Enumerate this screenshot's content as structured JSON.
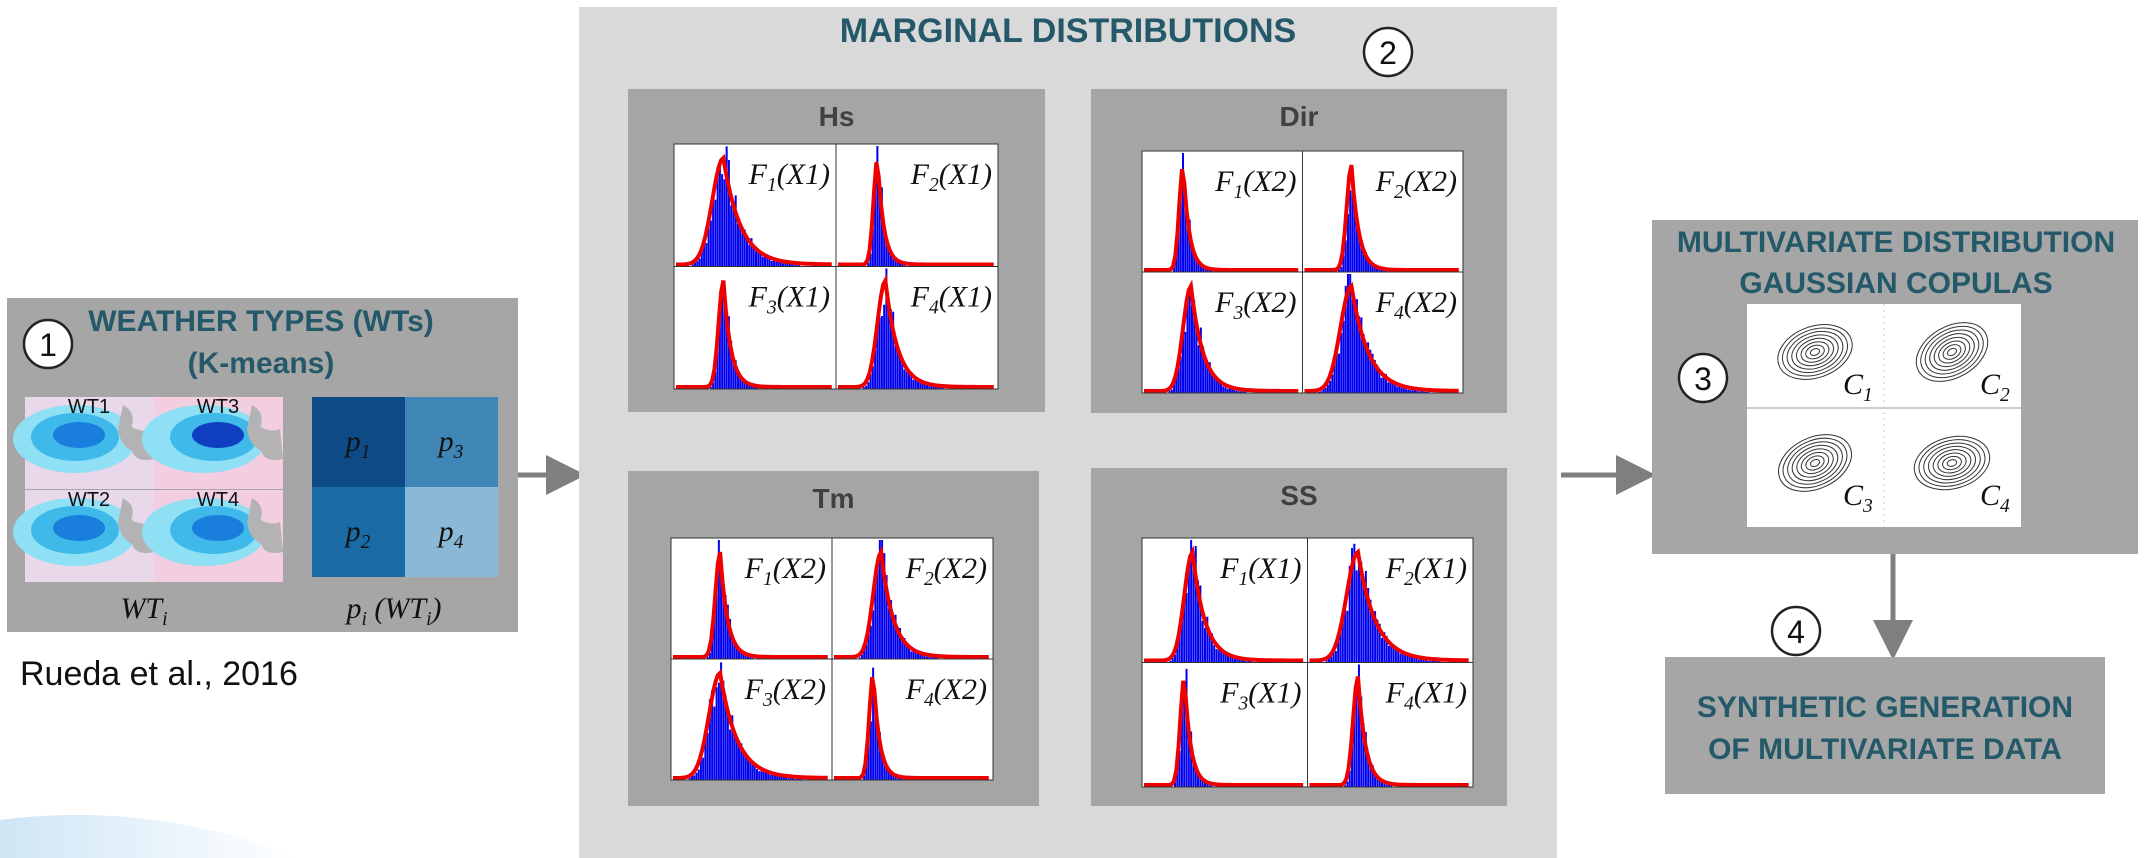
{
  "step1": {
    "number": "1",
    "title": [
      "WEATHER TYPES (WTs)",
      "(K-means)"
    ],
    "maps": [
      "WT1",
      "WT3",
      "WT2",
      "WT4"
    ],
    "probabilities": [
      [
        "p",
        {
          "sub": "1"
        }
      ],
      [
        "p",
        {
          "sub": "3"
        }
      ],
      [
        "p",
        {
          "sub": "2"
        }
      ],
      [
        "p",
        {
          "sub": "4"
        }
      ]
    ],
    "caption_maps": [
      "WT",
      {
        "sub": "i"
      }
    ],
    "caption_probs": [
      "p",
      {
        "sub": "i"
      },
      " (WT",
      {
        "sub": "i"
      },
      ")"
    ]
  },
  "reference": "Rueda et al., 2016",
  "step2": {
    "number": "2",
    "title": "MARGINAL DISTRIBUTIONS",
    "panels": [
      {
        "name": "Hs",
        "labels": [
          [
            "F",
            {
              "sub": "1"
            },
            "(X1)"
          ],
          [
            "F",
            {
              "sub": "2"
            },
            "(X1)"
          ],
          [
            "F",
            {
              "sub": "3"
            },
            "(X1)"
          ],
          [
            "F",
            {
              "sub": "4"
            },
            "(X1)"
          ]
        ]
      },
      {
        "name": "Dir",
        "labels": [
          [
            "F",
            {
              "sub": "1"
            },
            "(X2)"
          ],
          [
            "F",
            {
              "sub": "2"
            },
            "(X2)"
          ],
          [
            "F",
            {
              "sub": "3"
            },
            "(X2)"
          ],
          [
            "F",
            {
              "sub": "4"
            },
            "(X2)"
          ]
        ]
      },
      {
        "name": "Tm",
        "labels": [
          [
            "F",
            {
              "sub": "1"
            },
            "(X2)"
          ],
          [
            "F",
            {
              "sub": "2"
            },
            "(X2)"
          ],
          [
            "F",
            {
              "sub": "3"
            },
            "(X2)"
          ],
          [
            "F",
            {
              "sub": "4"
            },
            "(X2)"
          ]
        ]
      },
      {
        "name": "SS",
        "labels": [
          [
            "F",
            {
              "sub": "1"
            },
            "(X1)"
          ],
          [
            "F",
            {
              "sub": "2"
            },
            "(X1)"
          ],
          [
            "F",
            {
              "sub": "3"
            },
            "(X1)"
          ],
          [
            "F",
            {
              "sub": "4"
            },
            "(X1)"
          ]
        ]
      }
    ]
  },
  "step3": {
    "number": "3",
    "title": [
      "MULTIVARIATE DISTRIBUTION",
      "GAUSSIAN COPULAS"
    ],
    "copulas": [
      [
        "C",
        {
          "sub": "1"
        }
      ],
      [
        "C",
        {
          "sub": "2"
        }
      ],
      [
        "C",
        {
          "sub": "3"
        }
      ],
      [
        "C",
        {
          "sub": "4"
        }
      ]
    ]
  },
  "step4": {
    "number": "4",
    "title": [
      "SYNTHETIC GENERATION",
      "OF MULTIVARIATE DATA"
    ]
  }
}
